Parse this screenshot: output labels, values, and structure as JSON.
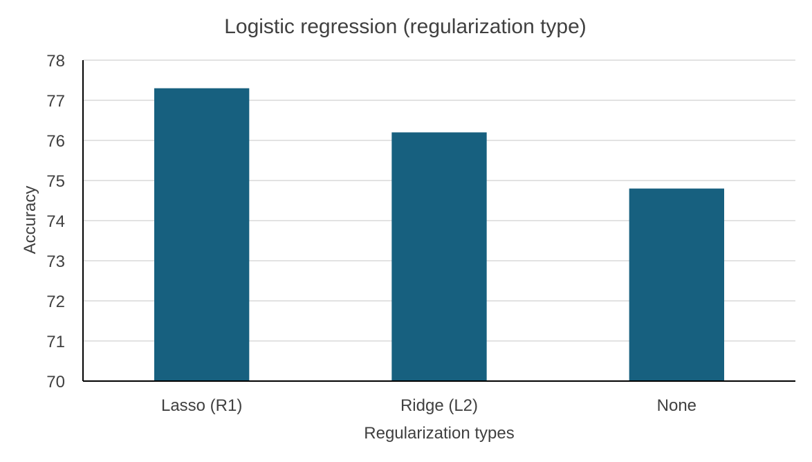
{
  "chart_data": {
    "type": "bar",
    "title": "Logistic regression (regularization type)",
    "xlabel": "Regularization types",
    "ylabel": "Accuracy",
    "categories": [
      "Lasso (R1)",
      "Ridge (L2)",
      "None"
    ],
    "values": [
      77.3,
      76.2,
      74.8
    ],
    "ylim": [
      70,
      78
    ],
    "yticks": [
      70,
      71,
      72,
      73,
      74,
      75,
      76,
      77,
      78
    ],
    "grid": true,
    "legend": "none",
    "bar_color": "#17607f"
  }
}
